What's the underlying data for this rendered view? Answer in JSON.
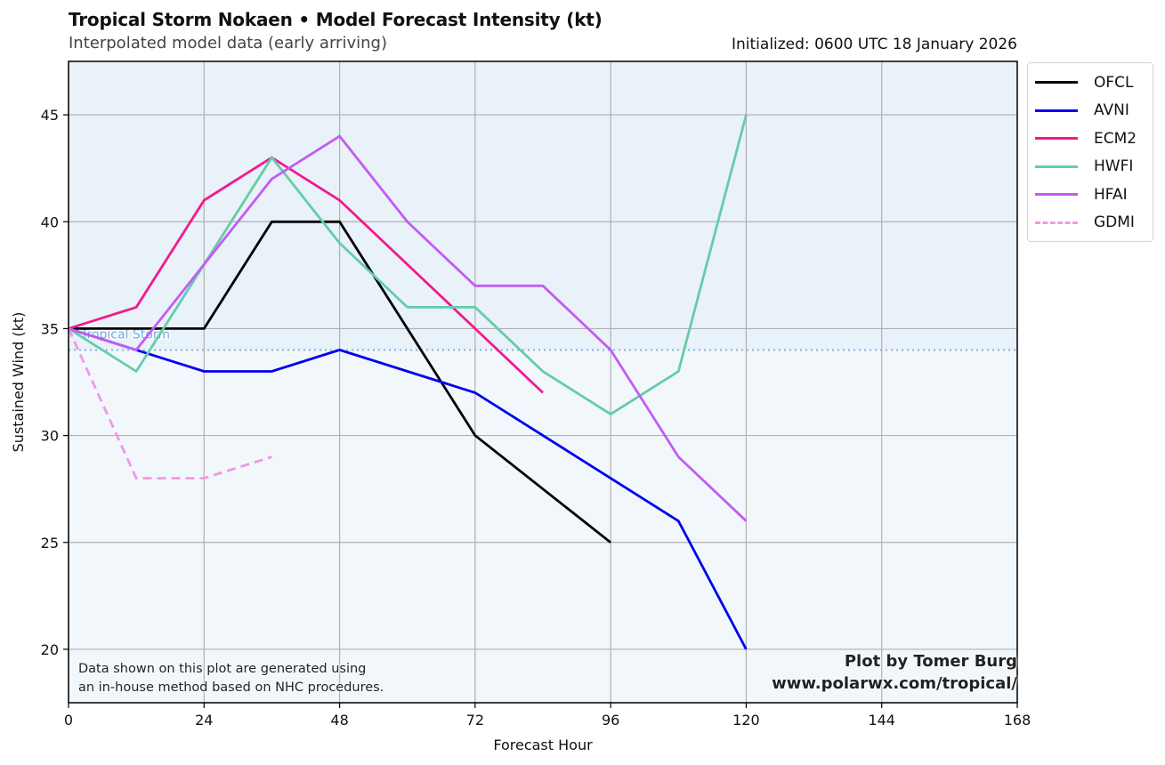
{
  "header": {
    "title": "Tropical Storm Nokaen • Model Forecast Intensity (kt)",
    "subtitle": "Interpolated model data (early arriving)",
    "initialized": "Initialized: 0600 UTC 18 January 2026"
  },
  "footer": {
    "note_line1": "Data shown on this plot are generated using",
    "note_line2": "an in-house method based on NHC procedures.",
    "credit_line1": "Plot by Tomer Burg",
    "credit_line2": "www.polarwx.com/tropical/"
  },
  "chart_data": {
    "type": "line",
    "title": "Tropical Storm Nokaen • Model Forecast Intensity (kt)",
    "xlabel": "Forecast Hour",
    "ylabel": "Sustained Wind (kt)",
    "xlim": [
      0,
      168
    ],
    "ylim": [
      17.5,
      47.5
    ],
    "xticks": [
      0,
      24,
      48,
      72,
      96,
      120,
      144,
      168
    ],
    "yticks": [
      20,
      25,
      30,
      35,
      40,
      45
    ],
    "grid": true,
    "legend_position": "outside-top-right",
    "threshold": {
      "value": 34,
      "label": "Tropical Storm",
      "color": "#7fb3e0",
      "above_color": "#e9f1f9",
      "below_color": "#f2f7fc"
    },
    "series": [
      {
        "name": "OFCL",
        "color": "#000000",
        "dashed": false,
        "x": [
          0,
          12,
          24,
          36,
          48,
          72,
          96
        ],
        "y": [
          35,
          35,
          35,
          40,
          40,
          30,
          25
        ]
      },
      {
        "name": "AVNI",
        "color": "#0000ee",
        "dashed": false,
        "x": [
          0,
          12,
          24,
          36,
          48,
          72,
          108,
          120
        ],
        "y": [
          35,
          34,
          33,
          33,
          34,
          32,
          26,
          20
        ]
      },
      {
        "name": "ECM2",
        "color": "#f21a8c",
        "dashed": false,
        "x": [
          0,
          12,
          24,
          36,
          48,
          84
        ],
        "y": [
          35,
          36,
          41,
          43,
          41,
          32
        ]
      },
      {
        "name": "HWFI",
        "color": "#66ccaa",
        "dashed": false,
        "x": [
          0,
          12,
          24,
          36,
          48,
          60,
          72,
          84,
          96,
          108,
          120
        ],
        "y": [
          35,
          33,
          38,
          43,
          39,
          36,
          36,
          33,
          31,
          33,
          45
        ]
      },
      {
        "name": "HFAI",
        "color": "#c35cf2",
        "dashed": false,
        "x": [
          0,
          12,
          24,
          36,
          48,
          60,
          72,
          84,
          96,
          108,
          120
        ],
        "y": [
          35,
          34,
          38,
          42,
          44,
          40,
          37,
          37,
          34,
          29,
          26
        ]
      },
      {
        "name": "GDMI",
        "color": "#ee99e6",
        "dashed": true,
        "x": [
          0,
          12,
          24,
          36
        ],
        "y": [
          35,
          28,
          28,
          29
        ]
      }
    ]
  }
}
